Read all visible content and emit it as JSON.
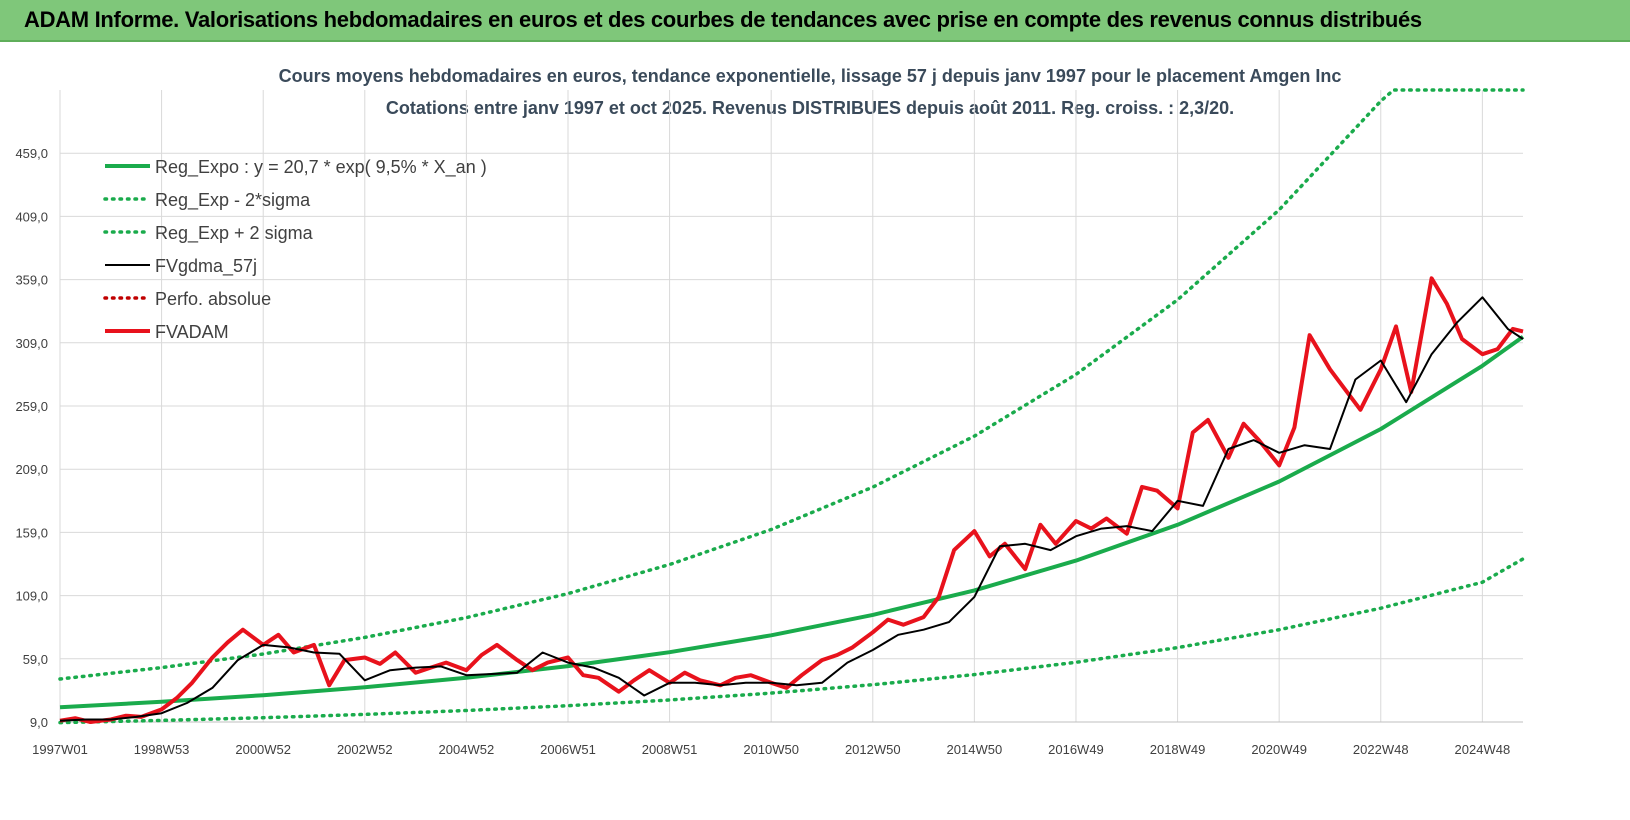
{
  "banner": {
    "title": "ADAM Informe. Valorisations hebdomadaires en euros et des courbes de tendances avec prise en compte des revenus connus distribués"
  },
  "chart_data": {
    "type": "line",
    "title": "Cours moyens hebdomadaires en euros, tendance exponentielle, lissage 57 j depuis janv 1997 pour le placement Amgen Inc",
    "subtitle": "Cotations entre janv 1997 et oct 2025. Revenus DISTRIBUES depuis août 2011. Reg. croiss. : 2,3/20.",
    "xlabel": "",
    "ylabel": "",
    "ylim": [
      9,
      509
    ],
    "xlim": [
      1997.0,
      2025.8
    ],
    "yticks": [
      9,
      59,
      109,
      159,
      209,
      259,
      309,
      359,
      409,
      459
    ],
    "ytick_labels": [
      "9,0",
      "59,0",
      "109,0",
      "159,0",
      "209,0",
      "259,0",
      "309,0",
      "359,0",
      "409,0",
      "459,0"
    ],
    "xticks": [
      {
        "label": "1997W01",
        "x": 1997.0
      },
      {
        "label": "1998W53",
        "x": 1999.0
      },
      {
        "label": "2000W52",
        "x": 2001.0
      },
      {
        "label": "2002W52",
        "x": 2003.0
      },
      {
        "label": "2004W52",
        "x": 2005.0
      },
      {
        "label": "2006W51",
        "x": 2007.0
      },
      {
        "label": "2008W51",
        "x": 2009.0
      },
      {
        "label": "2010W50",
        "x": 2011.0
      },
      {
        "label": "2012W50",
        "x": 2013.0
      },
      {
        "label": "2014W50",
        "x": 2015.0
      },
      {
        "label": "2016W49",
        "x": 2017.0
      },
      {
        "label": "2018W49",
        "x": 2019.0
      },
      {
        "label": "2020W49",
        "x": 2021.0
      },
      {
        "label": "2022W48",
        "x": 2023.0
      },
      {
        "label": "2024W48",
        "x": 2025.0
      }
    ],
    "grid": true,
    "legend_position": "top-left",
    "series": [
      {
        "name": "Reg_Expo : y = 20,7 * exp( 9,5% *  X_an )",
        "style": "solid-thick",
        "color": "#1aab4c",
        "x": [
          1997.0,
          1999.0,
          2001.0,
          2003.0,
          2005.0,
          2007.0,
          2009.0,
          2011.0,
          2013.0,
          2015.0,
          2017.0,
          2019.0,
          2021.0,
          2023.0,
          2025.0,
          2025.8
        ],
        "y": [
          20.7,
          25.0,
          30.2,
          36.5,
          44.0,
          53.2,
          64.2,
          77.6,
          93.7,
          113.1,
          136.7,
          165.0,
          199.3,
          240.8,
          290.8,
          313.8
        ]
      },
      {
        "name": "Reg_Exp - 2*sigma",
        "style": "dotted",
        "color": "#1aab4c",
        "x": [
          1997.0,
          1999.0,
          2001.0,
          2003.0,
          2005.0,
          2007.0,
          2009.0,
          2011.0,
          2013.0,
          2015.0,
          2017.0,
          2019.0,
          2021.0,
          2023.0,
          2025.0,
          2025.8
        ],
        "y": [
          8.5,
          10.3,
          12.4,
          15.0,
          18.1,
          21.9,
          26.4,
          31.9,
          38.5,
          46.5,
          56.2,
          67.9,
          82.0,
          99.0,
          119.6,
          138.0
        ]
      },
      {
        "name": "Reg_Exp + 2 sigma",
        "style": "dotted",
        "color": "#1aab4c",
        "x": [
          1997.0,
          1999.0,
          2001.0,
          2003.0,
          2005.0,
          2007.0,
          2009.0,
          2011.0,
          2013.0,
          2015.0,
          2017.0,
          2019.0,
          2021.0,
          2023.0,
          2023.25,
          2025.8
        ],
        "y": [
          43.0,
          52.0,
          62.8,
          75.9,
          91.6,
          110.6,
          133.6,
          161.3,
          194.8,
          235.2,
          284.0,
          343.0,
          414.2,
          500.2,
          509.0,
          509.0
        ]
      },
      {
        "name": "FVgdma_57j",
        "style": "solid",
        "color": "#000000",
        "x": [
          1997.0,
          1997.5,
          1998.0,
          1998.5,
          1999.0,
          1999.5,
          2000.0,
          2000.5,
          2001.0,
          2001.5,
          2002.0,
          2002.5,
          2003.0,
          2003.5,
          2004.0,
          2004.5,
          2005.0,
          2005.5,
          2006.0,
          2006.5,
          2007.0,
          2007.5,
          2008.0,
          2008.5,
          2009.0,
          2009.5,
          2010.0,
          2010.5,
          2011.0,
          2011.5,
          2012.0,
          2012.5,
          2013.0,
          2013.5,
          2014.0,
          2014.5,
          2015.0,
          2015.5,
          2016.0,
          2016.5,
          2017.0,
          2017.5,
          2018.0,
          2018.5,
          2019.0,
          2019.5,
          2020.0,
          2020.5,
          2021.0,
          2021.5,
          2022.0,
          2022.5,
          2023.0,
          2023.5,
          2024.0,
          2024.5,
          2025.0,
          2025.5,
          2025.8
        ],
        "y": [
          10,
          11,
          11,
          13,
          16,
          24,
          36,
          58,
          70,
          68,
          64,
          63,
          42,
          50,
          52,
          53,
          46,
          47,
          48,
          64,
          56,
          52,
          44,
          30,
          40,
          40,
          38,
          40,
          40,
          38,
          40,
          56,
          66,
          78,
          82,
          88,
          108,
          148,
          150,
          145,
          156,
          162,
          164,
          160,
          184,
          180,
          225,
          232,
          222,
          228,
          225,
          280,
          295,
          262,
          300,
          325,
          345,
          320,
          312
        ]
      },
      {
        "name": "Perfo. absolue",
        "style": "dotted",
        "color": "#c00000",
        "x": [],
        "y": []
      },
      {
        "name": "FVADAM",
        "style": "solid-thick",
        "color": "#e8121c",
        "x": [
          1997.0,
          1997.3,
          1997.6,
          1998.0,
          1998.3,
          1998.6,
          1999.0,
          1999.3,
          1999.6,
          2000.0,
          2000.3,
          2000.6,
          2001.0,
          2001.3,
          2001.6,
          2002.0,
          2002.3,
          2002.6,
          2003.0,
          2003.3,
          2003.6,
          2004.0,
          2004.3,
          2004.6,
          2005.0,
          2005.3,
          2005.6,
          2006.0,
          2006.3,
          2006.6,
          2007.0,
          2007.3,
          2007.6,
          2008.0,
          2008.3,
          2008.6,
          2009.0,
          2009.3,
          2009.6,
          2010.0,
          2010.3,
          2010.6,
          2011.0,
          2011.3,
          2011.6,
          2012.0,
          2012.3,
          2012.6,
          2013.0,
          2013.3,
          2013.6,
          2014.0,
          2014.3,
          2014.6,
          2015.0,
          2015.3,
          2015.6,
          2016.0,
          2016.3,
          2016.6,
          2017.0,
          2017.3,
          2017.6,
          2018.0,
          2018.3,
          2018.6,
          2019.0,
          2019.3,
          2019.6,
          2020.0,
          2020.3,
          2020.6,
          2021.0,
          2021.3,
          2021.6,
          2022.0,
          2022.3,
          2022.6,
          2023.0,
          2023.3,
          2023.6,
          2024.0,
          2024.3,
          2024.6,
          2025.0,
          2025.3,
          2025.6,
          2025.8
        ],
        "y": [
          10,
          12,
          9,
          11,
          14,
          13,
          19,
          28,
          40,
          60,
          72,
          82,
          70,
          78,
          64,
          70,
          38,
          58,
          60,
          55,
          64,
          48,
          52,
          56,
          50,
          62,
          70,
          58,
          50,
          56,
          60,
          46,
          44,
          33,
          42,
          50,
          40,
          48,
          42,
          38,
          44,
          46,
          40,
          36,
          46,
          58,
          62,
          68,
          80,
          90,
          86,
          92,
          108,
          145,
          160,
          140,
          150,
          130,
          165,
          150,
          168,
          162,
          170,
          158,
          195,
          192,
          178,
          238,
          248,
          218,
          245,
          232,
          212,
          242,
          315,
          288,
          272,
          256,
          288,
          322,
          270,
          360,
          340,
          312,
          300,
          304,
          320,
          318
        ]
      }
    ]
  }
}
